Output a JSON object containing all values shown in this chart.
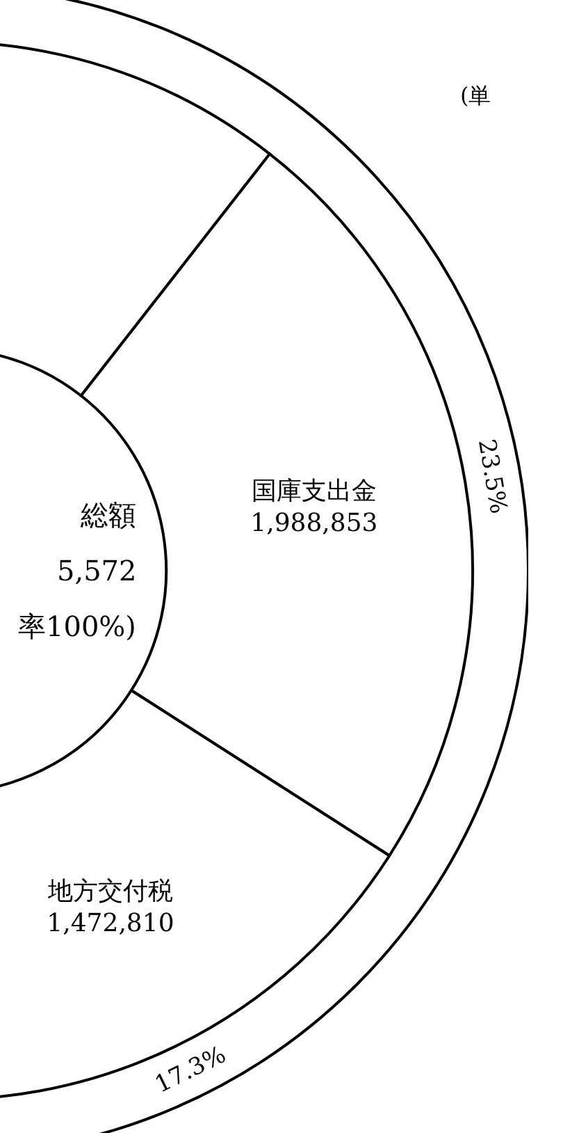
{
  "chart_data": {
    "type": "donut",
    "categories": [
      "国庫支出金",
      "地方交付税",
      null
    ],
    "values": [
      23.5,
      17.3,
      59.2
    ],
    "value_labels": [
      "23.5%",
      "17.3%",
      null
    ],
    "colors": [
      "#ffffff",
      "#ffffff",
      "#ffffff"
    ],
    "annotations": [
      "1,988,853",
      "1,472,810",
      "総額",
      "5,572",
      "率100%)",
      "(単"
    ]
  }
}
